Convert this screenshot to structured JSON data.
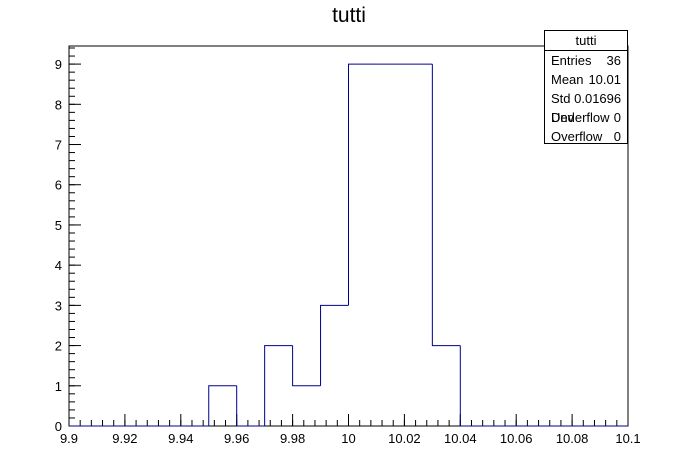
{
  "chart_data": {
    "type": "bar",
    "title": "tutti",
    "xlabel": "",
    "ylabel": "",
    "xlim": [
      9.9,
      10.1
    ],
    "ylim": [
      0,
      9.45
    ],
    "bin_width": 0.01,
    "bins": [
      {
        "low": 9.9,
        "high": 9.91,
        "count": 0
      },
      {
        "low": 9.91,
        "high": 9.92,
        "count": 0
      },
      {
        "low": 9.92,
        "high": 9.93,
        "count": 0
      },
      {
        "low": 9.93,
        "high": 9.94,
        "count": 0
      },
      {
        "low": 9.94,
        "high": 9.95,
        "count": 0
      },
      {
        "low": 9.95,
        "high": 9.96,
        "count": 1
      },
      {
        "low": 9.96,
        "high": 9.97,
        "count": 0
      },
      {
        "low": 9.97,
        "high": 9.98,
        "count": 2
      },
      {
        "low": 9.98,
        "high": 9.99,
        "count": 1
      },
      {
        "low": 9.99,
        "high": 10.0,
        "count": 3
      },
      {
        "low": 10.0,
        "high": 10.01,
        "count": 9
      },
      {
        "low": 10.01,
        "high": 10.02,
        "count": 9
      },
      {
        "low": 10.02,
        "high": 10.03,
        "count": 9
      },
      {
        "low": 10.03,
        "high": 10.04,
        "count": 2
      },
      {
        "low": 10.04,
        "high": 10.05,
        "count": 0
      },
      {
        "low": 10.05,
        "high": 10.06,
        "count": 0
      },
      {
        "low": 10.06,
        "high": 10.07,
        "count": 0
      },
      {
        "low": 10.07,
        "high": 10.08,
        "count": 0
      },
      {
        "low": 10.08,
        "high": 10.09,
        "count": 0
      },
      {
        "low": 10.09,
        "high": 10.1,
        "count": 0
      }
    ],
    "x_ticks": [
      {
        "value": 9.9,
        "label": "9.9"
      },
      {
        "value": 9.92,
        "label": "9.92"
      },
      {
        "value": 9.94,
        "label": "9.94"
      },
      {
        "value": 9.96,
        "label": "9.96"
      },
      {
        "value": 9.98,
        "label": "9.98"
      },
      {
        "value": 10.0,
        "label": "10"
      },
      {
        "value": 10.02,
        "label": "10.02"
      },
      {
        "value": 10.04,
        "label": "10.04"
      },
      {
        "value": 10.06,
        "label": "10.06"
      },
      {
        "value": 10.08,
        "label": "10.08"
      },
      {
        "value": 10.1,
        "label": "10.1"
      }
    ],
    "y_ticks": [
      {
        "value": 0,
        "label": "0"
      },
      {
        "value": 1,
        "label": "1"
      },
      {
        "value": 2,
        "label": "2"
      },
      {
        "value": 3,
        "label": "3"
      },
      {
        "value": 4,
        "label": "4"
      },
      {
        "value": 5,
        "label": "5"
      },
      {
        "value": 6,
        "label": "6"
      },
      {
        "value": 7,
        "label": "7"
      },
      {
        "value": 8,
        "label": "8"
      },
      {
        "value": 9,
        "label": "9"
      }
    ],
    "grid": false,
    "line_color": "#00008b",
    "stats_box": {
      "title": "tutti",
      "rows": [
        {
          "label": "Entries",
          "value": "36"
        },
        {
          "label": "Mean",
          "value": "10.01"
        },
        {
          "label": "Std Dev",
          "value": "0.01696"
        },
        {
          "label": "Underflow",
          "value": "0"
        },
        {
          "label": "Overflow",
          "value": "0"
        }
      ]
    }
  }
}
